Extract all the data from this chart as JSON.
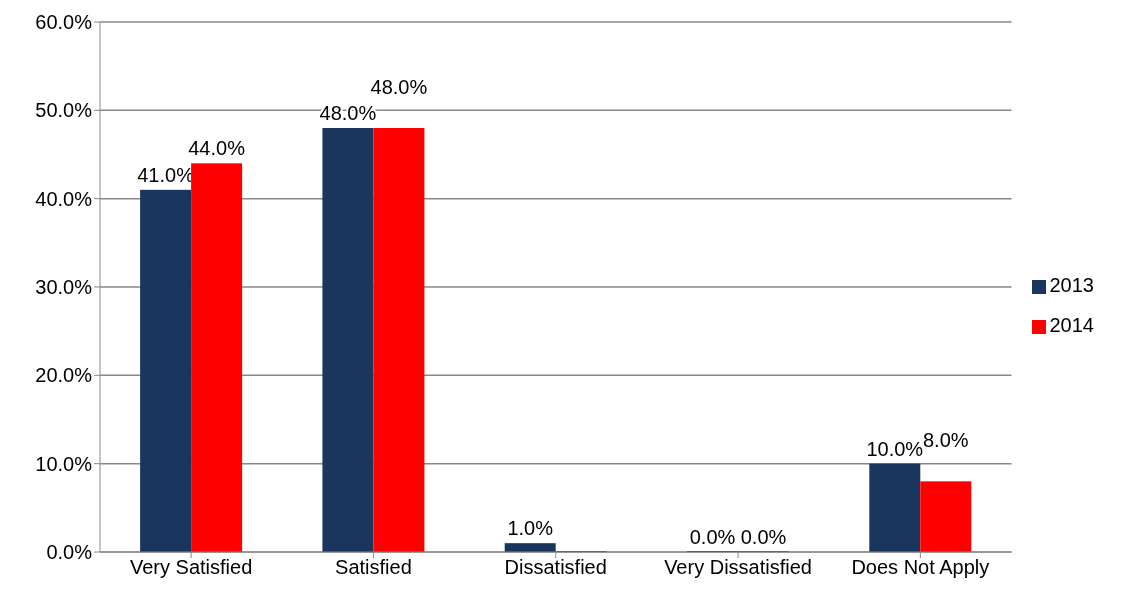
{
  "chart_data": {
    "type": "bar",
    "categories": [
      "Very Satisfied",
      "Satisfied",
      "Dissatisfied",
      "Very Dissatisfied",
      "Does Not Apply"
    ],
    "series": [
      {
        "name": "2013",
        "color": "#1b365d",
        "values": [
          41,
          48,
          1,
          0,
          10
        ],
        "value_labels": [
          "41.0%",
          "48.0%",
          "1.0%",
          "0.0%",
          "10.0%"
        ]
      },
      {
        "name": "2014",
        "color": "#ff0000",
        "values": [
          44,
          48,
          0,
          0,
          8
        ],
        "value_labels": [
          "44.0%",
          "48.0%",
          null,
          "0.0%",
          "8.0%"
        ]
      }
    ],
    "ylim": [
      0,
      60
    ],
    "yticks": [
      {
        "value": 0,
        "label": "0.0%"
      },
      {
        "value": 10,
        "label": "10.0%"
      },
      {
        "value": 20,
        "label": "20.0%"
      },
      {
        "value": 30,
        "label": "30.0%"
      },
      {
        "value": 40,
        "label": "40.0%"
      },
      {
        "value": 50,
        "label": "50.0%"
      },
      {
        "value": 60,
        "label": "60.0%"
      }
    ],
    "grid": "y",
    "legend": "right"
  }
}
